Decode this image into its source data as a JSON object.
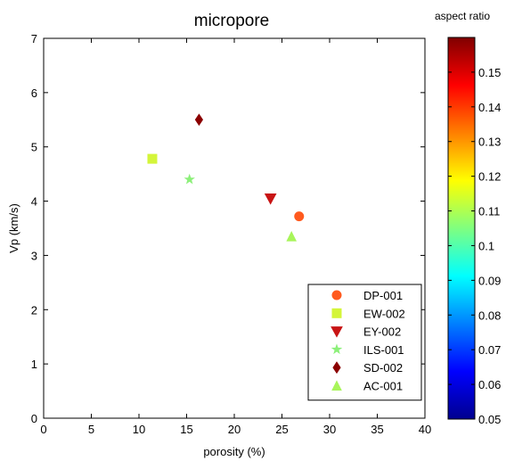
{
  "chart_data": {
    "type": "scatter",
    "title": "micropore",
    "xlabel": "porosity (%)",
    "ylabel": "Vp (km/s)",
    "xlim": [
      0,
      40
    ],
    "ylim": [
      0,
      7
    ],
    "xticks": [
      0,
      5,
      10,
      15,
      20,
      25,
      30,
      35,
      40
    ],
    "yticks": [
      0,
      1,
      2,
      3,
      4,
      5,
      6,
      7
    ],
    "grid": false,
    "legend_position": "bottom-right",
    "series": [
      {
        "name": "DP-001",
        "marker": "circle",
        "color": "#ff5a1e",
        "points": [
          {
            "x": 26.8,
            "y": 3.72
          }
        ]
      },
      {
        "name": "EW-002",
        "marker": "square",
        "color": "#d4f53a",
        "points": [
          {
            "x": 11.4,
            "y": 4.78
          }
        ]
      },
      {
        "name": "EY-002",
        "marker": "triangle-down",
        "color": "#c81414",
        "points": [
          {
            "x": 23.8,
            "y": 4.05
          }
        ]
      },
      {
        "name": "ILS-001",
        "marker": "star",
        "color": "#8df07a",
        "points": [
          {
            "x": 15.3,
            "y": 4.4
          }
        ]
      },
      {
        "name": "SD-002",
        "marker": "diamond",
        "color": "#8b0000",
        "points": [
          {
            "x": 16.3,
            "y": 5.5
          }
        ]
      },
      {
        "name": "AC-001",
        "marker": "triangle-up",
        "color": "#a8f55a",
        "points": [
          {
            "x": 26.0,
            "y": 3.35
          }
        ]
      }
    ],
    "colorbar": {
      "title": "aspect ratio",
      "min": 0.05,
      "max": 0.16,
      "ticks": [
        "0.05",
        "0.06",
        "0.07",
        "0.08",
        "0.09",
        "0.1",
        "0.11",
        "0.12",
        "0.13",
        "0.14",
        "0.15"
      ],
      "colormap": "jet"
    }
  }
}
